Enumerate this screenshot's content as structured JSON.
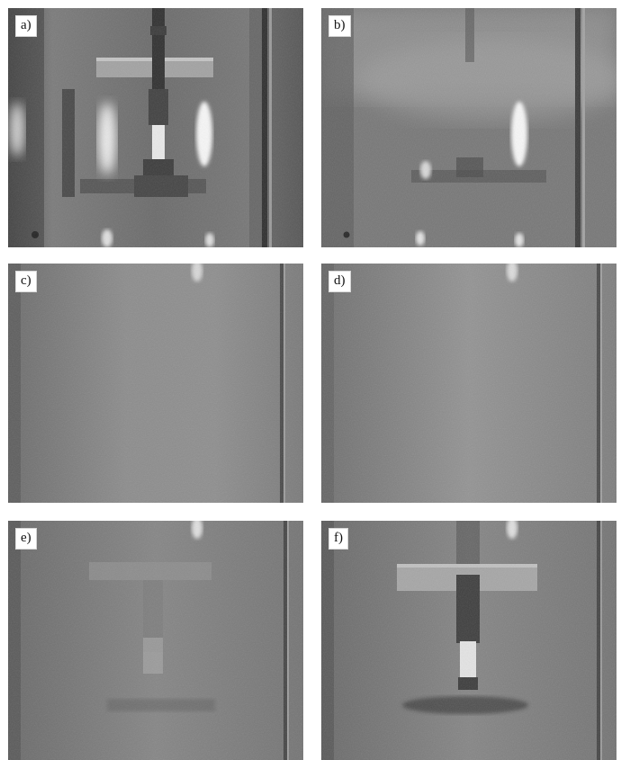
{
  "panels": [
    {
      "id": "a",
      "label": "a)"
    },
    {
      "id": "b",
      "label": "b)"
    },
    {
      "id": "c",
      "label": "c)"
    },
    {
      "id": "d",
      "label": "d)"
    },
    {
      "id": "e",
      "label": "e)"
    },
    {
      "id": "f",
      "label": "f)"
    }
  ],
  "colors": {
    "background": "#ffffff",
    "water_gray": "#8a8a8a",
    "dark_gray": "#3a3a3a",
    "light_highlight": "#f4f4f4"
  }
}
